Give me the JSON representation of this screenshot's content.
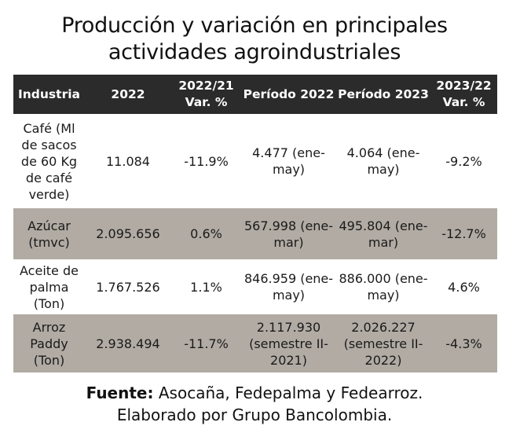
{
  "title": {
    "line1": "Producción y variación en principales",
    "line2": "actividades agroindustriales"
  },
  "table": {
    "headers": [
      "Industria",
      "2022",
      "2022/21 Var. %",
      "Período 2022",
      "Período 2023",
      "2023/22 Var. %"
    ],
    "rows": [
      {
        "industria": "Café (Ml de sacos de  60 Kg de café verde)",
        "y2022": "11.084",
        "var21": "-11.9%",
        "p2022": "4.477 (ene-may)",
        "p2023": "4.064 (ene-may)",
        "var22": "-9.2%"
      },
      {
        "industria": "Azúcar (tmvc)",
        "y2022": "2.095.656",
        "var21": "0.6%",
        "p2022": "567.998 (ene-mar)",
        "p2023": "495.804 (ene-mar)",
        "var22": "-12.7%"
      },
      {
        "industria": "Aceite de palma (Ton)",
        "y2022": "1.767.526",
        "var21": "1.1%",
        "p2022": "846.959 (ene-may)",
        "p2023": "886.000 (ene-may)",
        "var22": "4.6%"
      },
      {
        "industria": "Arroz Paddy (Ton)",
        "y2022": "2.938.494",
        "var21": "-11.7%",
        "p2022": "2.117.930 (semestre II-2021)",
        "p2023": "2.026.227 (semestre II-2022)",
        "var22": "-4.3%"
      }
    ]
  },
  "footer": {
    "source_label": "Fuente:",
    "source_text": " Asocaña, Fedepalma y Fedearroz.",
    "credit": "Elaborado por Grupo Bancolombia."
  },
  "colors": {
    "header_bg": "#2b2b2b",
    "header_text": "#ffffff",
    "shaded_row": "#b1aba4",
    "light_row": "#ffffff"
  }
}
